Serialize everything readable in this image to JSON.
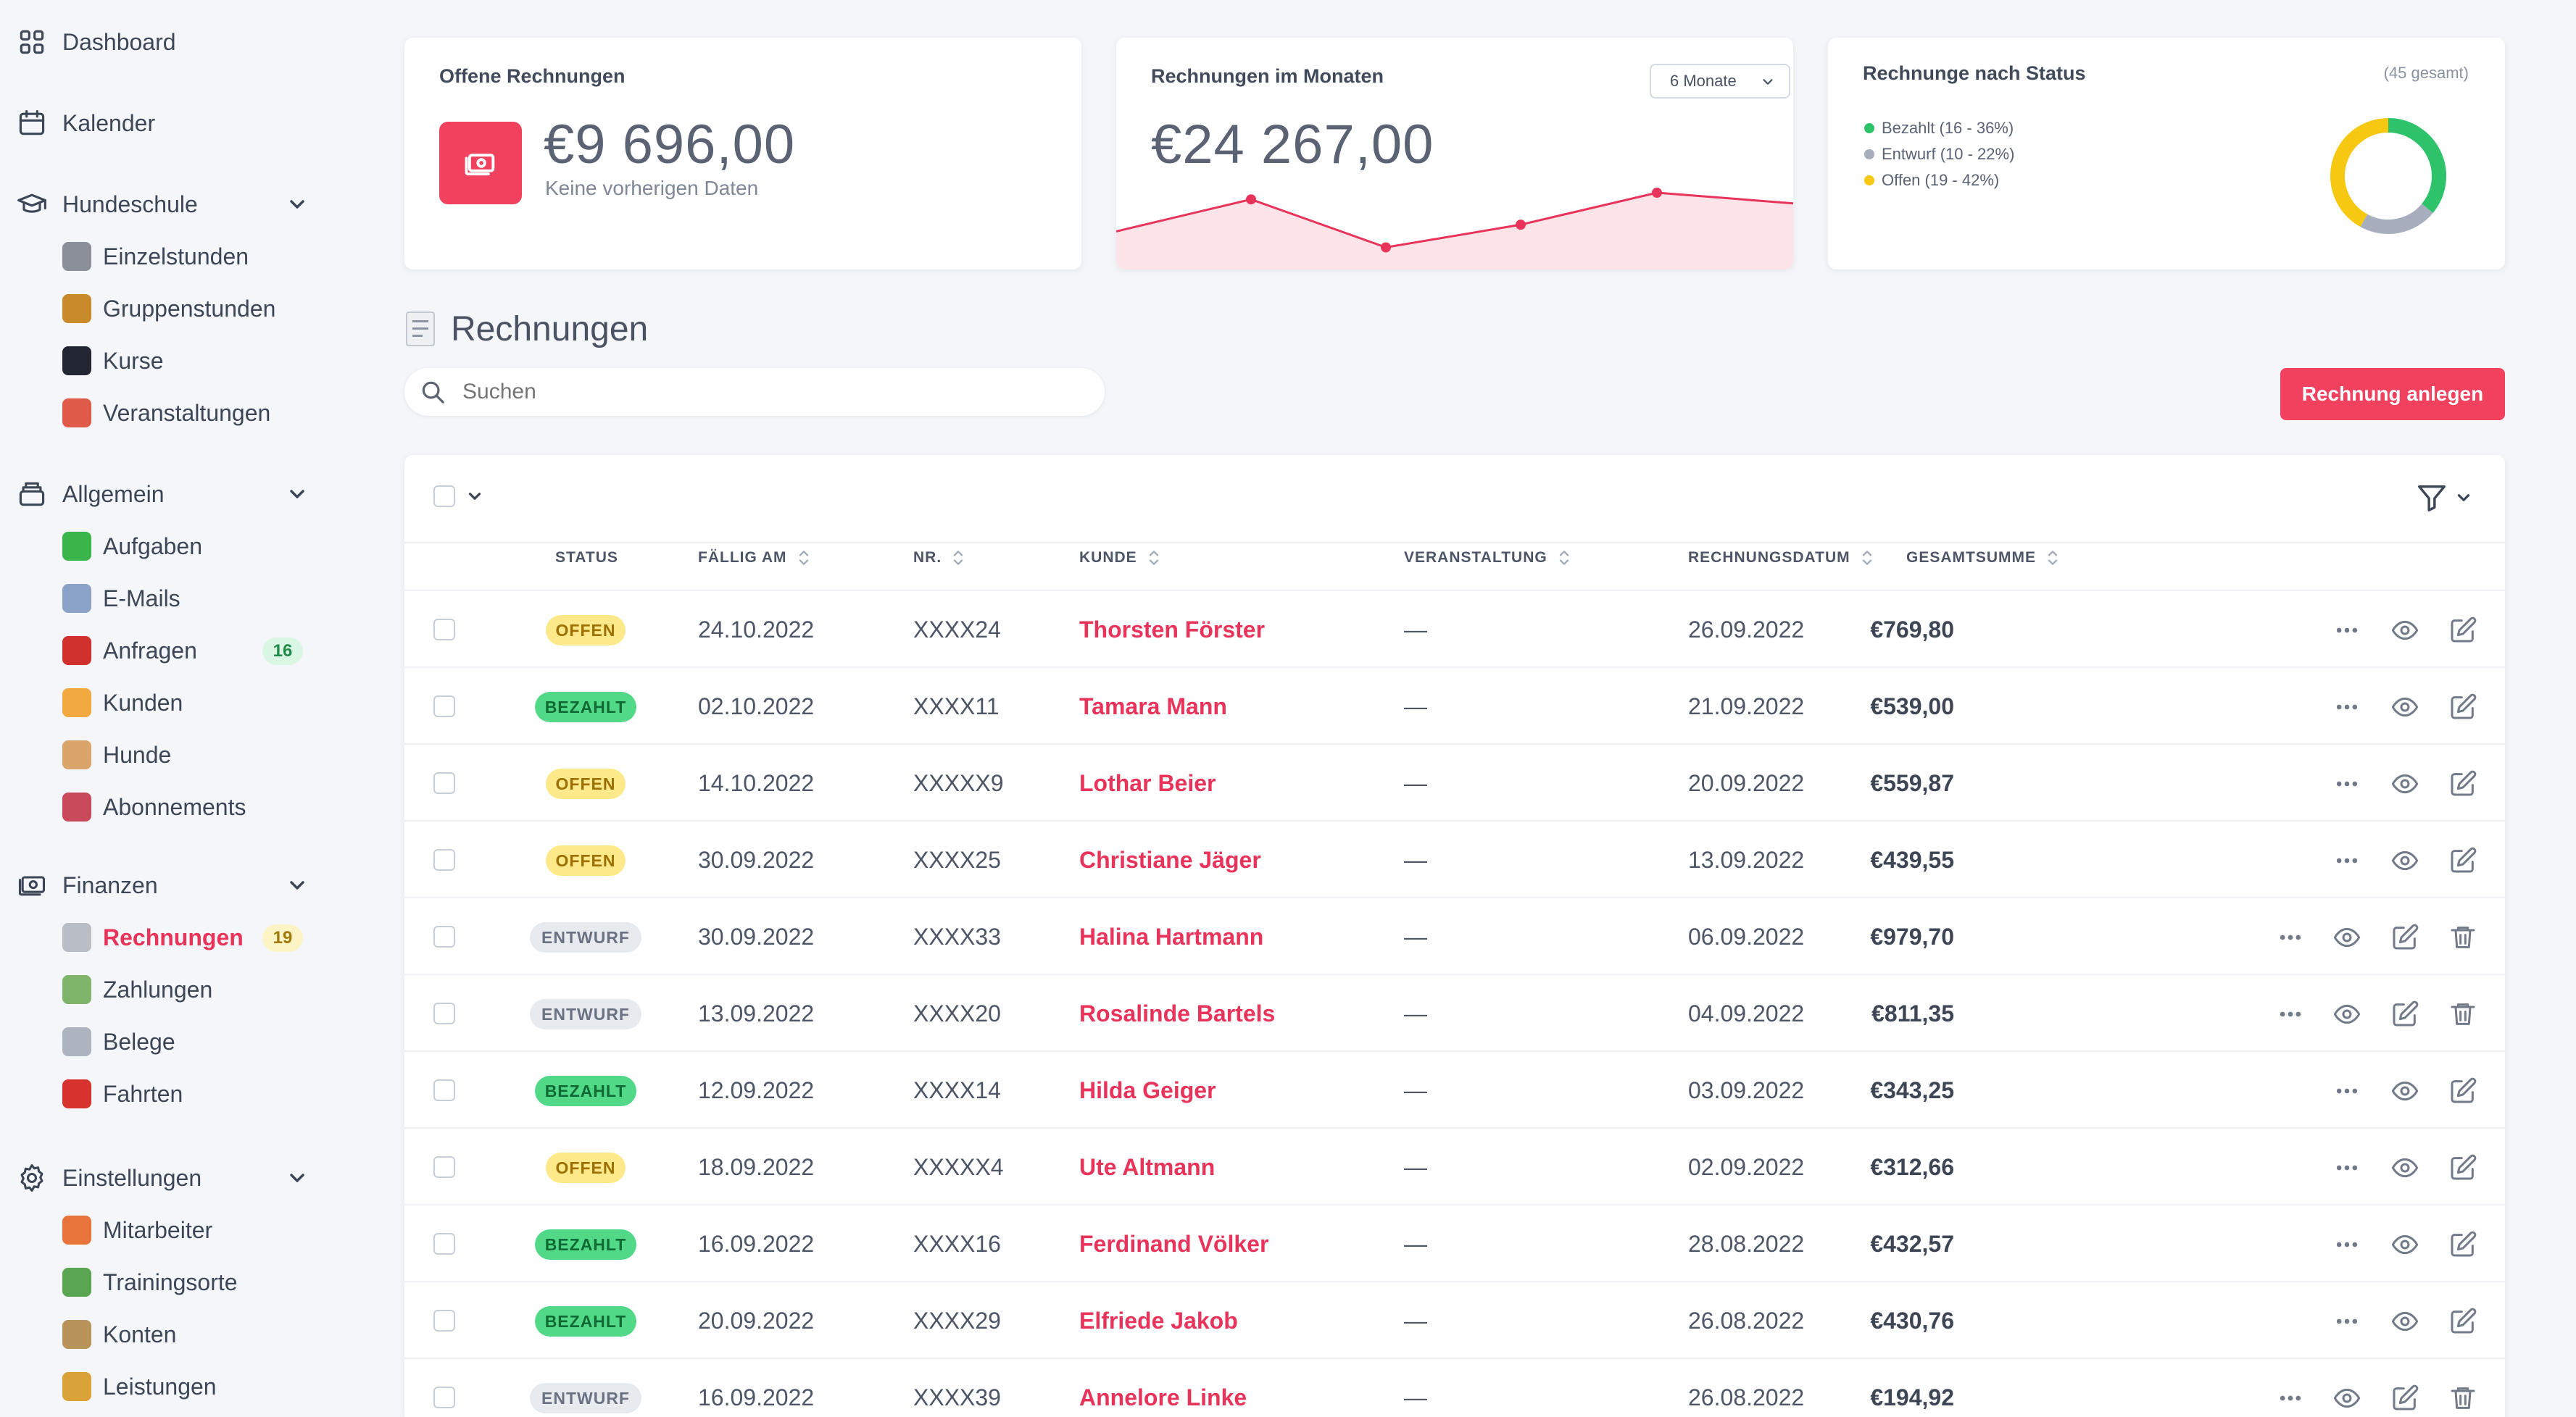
{
  "sidebar": {
    "groups": [
      {
        "label": "Dashboard",
        "icon": "grid-icon",
        "sub": []
      },
      {
        "label": "Kalender",
        "icon": "calendar-icon",
        "sub": []
      },
      {
        "label": "Hundeschule",
        "icon": "graduation-cap-icon",
        "expanded": true,
        "sub": [
          {
            "label": "Einzelstunden",
            "icon": "clock-emoji",
            "color": "#8a8f99"
          },
          {
            "label": "Gruppenstunden",
            "icon": "dog-emoji",
            "color": "#c98a2a"
          },
          {
            "label": "Kurse",
            "icon": "graduation-cap-emoji",
            "color": "#222632"
          },
          {
            "label": "Veranstaltungen",
            "icon": "calendar-emoji",
            "color": "#e05a4a"
          }
        ]
      },
      {
        "label": "Allgemein",
        "icon": "inbox-stack-icon",
        "expanded": true,
        "sub": [
          {
            "label": "Aufgaben",
            "icon": "check-mark-emoji",
            "color": "#39b54a"
          },
          {
            "label": "E-Mails",
            "icon": "envelope-emoji",
            "color": "#8aa2c8"
          },
          {
            "label": "Anfragen",
            "icon": "mailbox-emoji",
            "color": "#d0312d",
            "badge": "16",
            "badge_style": "green"
          },
          {
            "label": "Kunden",
            "icon": "people-emoji",
            "color": "#f1a940"
          },
          {
            "label": "Hunde",
            "icon": "dog-face-emoji",
            "color": "#d9a56a"
          },
          {
            "label": "Abonnements",
            "icon": "chart-emoji",
            "color": "#c94a5a"
          }
        ]
      },
      {
        "label": "Finanzen",
        "icon": "banknotes-icon",
        "expanded": true,
        "sub": [
          {
            "label": "Rechnungen",
            "icon": "receipt-emoji",
            "color": "#b9bdc6",
            "active": true,
            "badge": "19",
            "badge_style": "yellow"
          },
          {
            "label": "Zahlungen",
            "icon": "money-wings-emoji",
            "color": "#7fb56a"
          },
          {
            "label": "Belege",
            "icon": "document-emoji",
            "color": "#aeb4bf"
          },
          {
            "label": "Fahrten",
            "icon": "car-emoji",
            "color": "#d8322f"
          }
        ]
      },
      {
        "label": "Einstellungen",
        "icon": "cog-icon",
        "expanded": true,
        "sub": [
          {
            "label": "Mitarbeiter",
            "icon": "person-emoji",
            "color": "#e8743b"
          },
          {
            "label": "Trainingsorte",
            "icon": "house-emoji",
            "color": "#5aa552"
          },
          {
            "label": "Konten",
            "icon": "bank-emoji",
            "color": "#b8935a"
          },
          {
            "label": "Leistungen",
            "icon": "money-bag-emoji",
            "color": "#d9a33a"
          }
        ]
      }
    ]
  },
  "cards": {
    "open": {
      "title": "Offene Rechnungen",
      "value": "€9 696,00",
      "note": "Keine vorherigen Daten",
      "icon": "banknote-icon",
      "icon_bg": "#f2415f"
    },
    "monthly": {
      "title": "Rechnungen im Monaten",
      "value": "€24 267,00",
      "select": "6 Monate"
    },
    "status": {
      "title": "Rechnunge nach Status",
      "total": "(45 gesamt)"
    }
  },
  "chart_data": [
    {
      "type": "area",
      "series": [
        {
          "values": [
            0.42,
            0.9,
            0.18,
            0.52,
            1.0,
            0.84
          ]
        }
      ],
      "color": "#e8345a",
      "fill": "#fde4e8"
    },
    {
      "type": "pie",
      "categories": [
        "Bezahlt (16 - 36%)",
        "Entwurf (10 - 22%)",
        "Offen (19 - 42%)"
      ],
      "values": [
        36,
        22,
        42
      ],
      "colors": [
        "#2ec26a",
        "#a7afbe",
        "#f7c811"
      ]
    }
  ],
  "page": {
    "title": "Rechnungen",
    "title_icon": "receipt-icon"
  },
  "search": {
    "placeholder": "Suchen"
  },
  "actions": {
    "create": "Rechnung anlegen"
  },
  "table": {
    "columns": [
      "STATUS",
      "FÄLLIG AM",
      "NR.",
      "KUNDE",
      "VERANSTALTUNG",
      "RECHNUNGSDATUM",
      "GESAMTSUMME"
    ],
    "rows": [
      {
        "status": "OFFEN",
        "due": "24.10.2022",
        "nr": "XXXX24",
        "customer": "Thorsten Förster",
        "event": "—",
        "date": "26.09.2022",
        "total": "€769,80"
      },
      {
        "status": "BEZAHLT",
        "due": "02.10.2022",
        "nr": "XXXX11",
        "customer": "Tamara Mann",
        "event": "—",
        "date": "21.09.2022",
        "total": "€539,00"
      },
      {
        "status": "OFFEN",
        "due": "14.10.2022",
        "nr": "XXXXX9",
        "customer": "Lothar Beier",
        "event": "—",
        "date": "20.09.2022",
        "total": "€559,87"
      },
      {
        "status": "OFFEN",
        "due": "30.09.2022",
        "nr": "XXXX25",
        "customer": "Christiane Jäger",
        "event": "—",
        "date": "13.09.2022",
        "total": "€439,55"
      },
      {
        "status": "ENTWURF",
        "due": "30.09.2022",
        "nr": "XXXX33",
        "customer": "Halina Hartmann",
        "event": "—",
        "date": "06.09.2022",
        "total": "€979,70"
      },
      {
        "status": "ENTWURF",
        "due": "13.09.2022",
        "nr": "XXXX20",
        "customer": "Rosalinde Bartels",
        "event": "—",
        "date": "04.09.2022",
        "total": "€811,35"
      },
      {
        "status": "BEZAHLT",
        "due": "12.09.2022",
        "nr": "XXXX14",
        "customer": "Hilda Geiger",
        "event": "—",
        "date": "03.09.2022",
        "total": "€343,25"
      },
      {
        "status": "OFFEN",
        "due": "18.09.2022",
        "nr": "XXXXX4",
        "customer": "Ute Altmann",
        "event": "—",
        "date": "02.09.2022",
        "total": "€312,66"
      },
      {
        "status": "BEZAHLT",
        "due": "16.09.2022",
        "nr": "XXXX16",
        "customer": "Ferdinand Völker",
        "event": "—",
        "date": "28.08.2022",
        "total": "€432,57"
      },
      {
        "status": "BEZAHLT",
        "due": "20.09.2022",
        "nr": "XXXX29",
        "customer": "Elfriede Jakob",
        "event": "—",
        "date": "26.08.2022",
        "total": "€430,76"
      },
      {
        "status": "ENTWURF",
        "due": "16.09.2022",
        "nr": "XXXX39",
        "customer": "Annelore Linke",
        "event": "—",
        "date": "26.08.2022",
        "total": "€194,92"
      }
    ]
  }
}
